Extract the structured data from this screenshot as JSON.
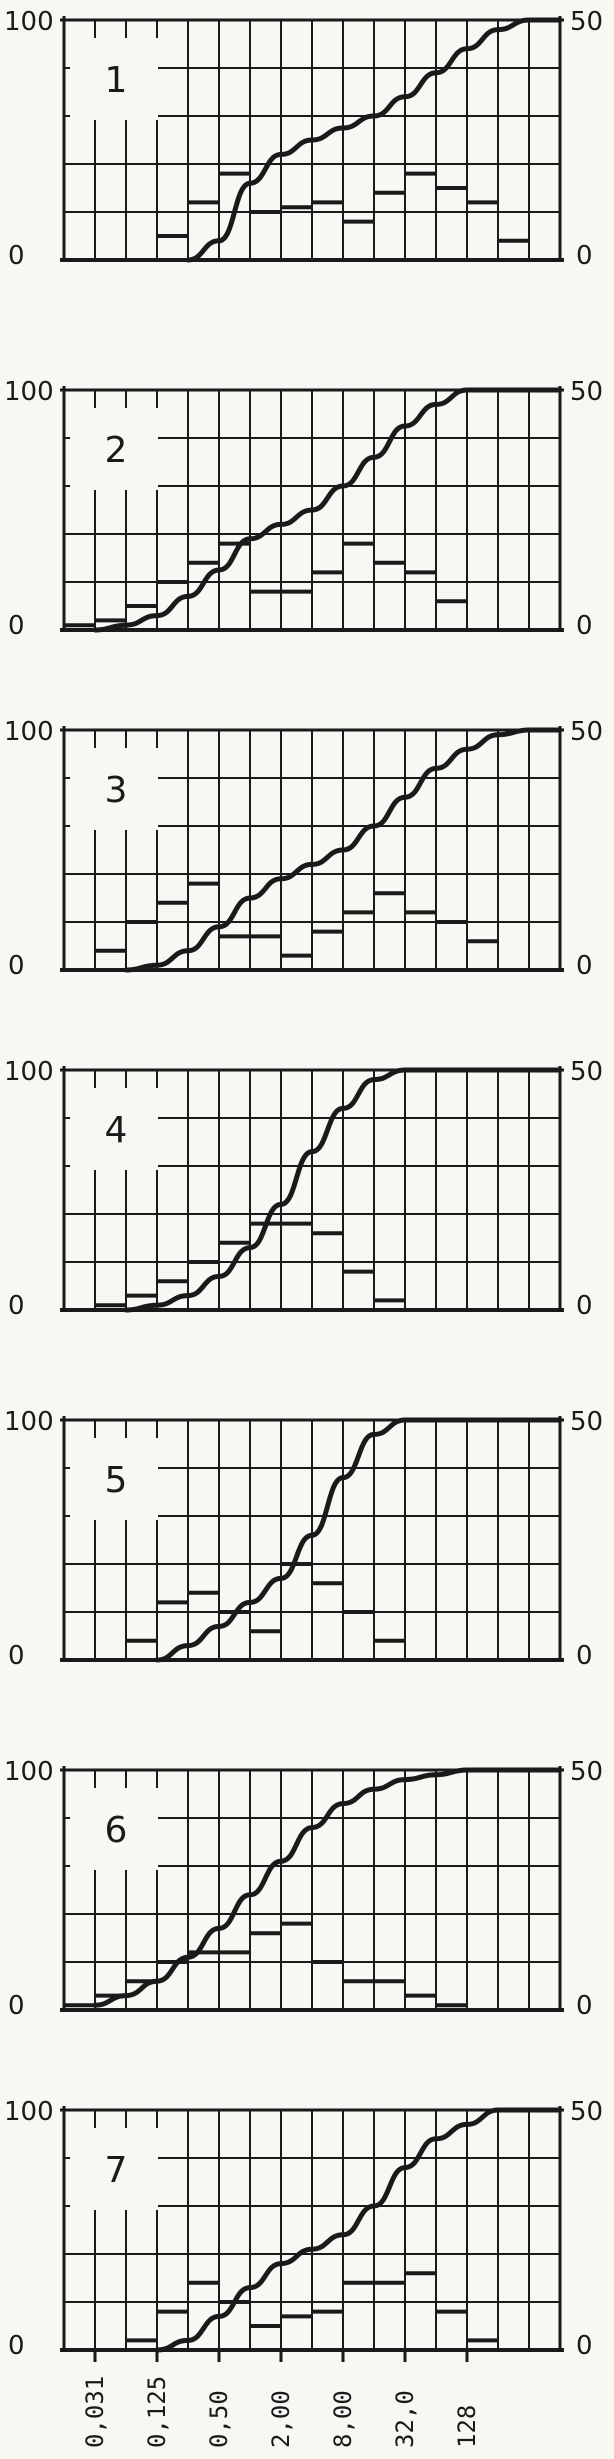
{
  "chart_data": {
    "type": "bar",
    "x_tick_labels": [
      "0,031",
      "0,125",
      "0,50",
      "2,00",
      "8,00",
      "32,0",
      "128"
    ],
    "panels": [
      {
        "label": "1",
        "left_axis": {
          "range": [
            0,
            100
          ],
          "tick_labels": [
            "100",
            "0"
          ]
        },
        "right_axis": {
          "range": [
            0,
            50
          ],
          "tick_labels": [
            "50",
            "0"
          ]
        },
        "histogram": [
          0,
          0,
          0,
          5,
          12,
          18,
          10,
          11,
          12,
          8,
          14,
          18,
          15,
          12,
          4,
          0
        ],
        "cumulative": [
          0,
          0,
          0,
          0,
          8,
          32,
          44,
          50,
          55,
          60,
          68,
          78,
          88,
          96,
          100,
          100
        ]
      },
      {
        "label": "2",
        "left_axis": {
          "range": [
            0,
            100
          ],
          "tick_labels": [
            "100",
            "0"
          ]
        },
        "right_axis": {
          "range": [
            0,
            50
          ],
          "tick_labels": [
            "50",
            "0"
          ]
        },
        "histogram": [
          1,
          2,
          5,
          10,
          14,
          18,
          8,
          8,
          12,
          18,
          14,
          12,
          6,
          0,
          0,
          0
        ],
        "cumulative": [
          0,
          2,
          6,
          14,
          25,
          38,
          44,
          50,
          60,
          72,
          85,
          94,
          100,
          100,
          100,
          100
        ]
      },
      {
        "label": "3",
        "left_axis": {
          "range": [
            0,
            100
          ],
          "tick_labels": [
            "100",
            "0"
          ]
        },
        "right_axis": {
          "range": [
            0,
            50
          ],
          "tick_labels": [
            "50",
            "0"
          ]
        },
        "histogram": [
          0,
          4,
          10,
          14,
          18,
          7,
          7,
          3,
          8,
          12,
          16,
          12,
          10,
          6,
          0,
          0
        ],
        "cumulative": [
          0,
          0,
          2,
          8,
          18,
          30,
          38,
          44,
          50,
          60,
          72,
          84,
          92,
          98,
          100,
          100
        ]
      },
      {
        "label": "4",
        "left_axis": {
          "range": [
            0,
            100
          ],
          "tick_labels": [
            "100",
            "0"
          ]
        },
        "right_axis": {
          "range": [
            0,
            50
          ],
          "tick_labels": [
            "50",
            "0"
          ]
        },
        "histogram": [
          0,
          1,
          3,
          6,
          10,
          14,
          18,
          18,
          16,
          8,
          2,
          0,
          0,
          0,
          0,
          0
        ],
        "cumulative": [
          0,
          0,
          2,
          6,
          14,
          26,
          44,
          66,
          84,
          96,
          100,
          100,
          100,
          100,
          100,
          100
        ]
      },
      {
        "label": "5",
        "left_axis": {
          "range": [
            0,
            100
          ],
          "tick_labels": [
            "100",
            "0"
          ]
        },
        "right_axis": {
          "range": [
            0,
            50
          ],
          "tick_labels": [
            "50",
            "0"
          ]
        },
        "histogram": [
          0,
          0,
          4,
          12,
          14,
          10,
          6,
          20,
          16,
          10,
          4,
          0,
          0,
          0,
          0,
          0
        ],
        "cumulative": [
          0,
          0,
          0,
          6,
          14,
          24,
          34,
          52,
          76,
          94,
          100,
          100,
          100,
          100,
          100,
          100
        ]
      },
      {
        "label": "6",
        "left_axis": {
          "range": [
            0,
            100
          ],
          "tick_labels": [
            "100",
            "0"
          ]
        },
        "right_axis": {
          "range": [
            0,
            50
          ],
          "tick_labels": [
            "50",
            "0"
          ]
        },
        "histogram": [
          1,
          3,
          6,
          10,
          12,
          12,
          16,
          18,
          10,
          6,
          6,
          3,
          1,
          0,
          0,
          0
        ],
        "cumulative": [
          2,
          6,
          12,
          22,
          34,
          48,
          62,
          76,
          86,
          92,
          96,
          98,
          100,
          100,
          100,
          100
        ]
      },
      {
        "label": "7",
        "left_axis": {
          "range": [
            0,
            100
          ],
          "tick_labels": [
            "100",
            "0"
          ]
        },
        "right_axis": {
          "range": [
            0,
            50
          ],
          "tick_labels": [
            "50",
            "0"
          ]
        },
        "histogram": [
          0,
          0,
          2,
          8,
          14,
          10,
          5,
          7,
          8,
          14,
          14,
          16,
          8,
          2,
          0,
          0
        ],
        "cumulative": [
          0,
          0,
          0,
          4,
          14,
          26,
          36,
          42,
          48,
          60,
          76,
          88,
          94,
          100,
          100,
          100
        ]
      }
    ],
    "grid": true,
    "colors": {
      "ink": "#1a1a1a",
      "paper": "#f7f7f4"
    }
  }
}
